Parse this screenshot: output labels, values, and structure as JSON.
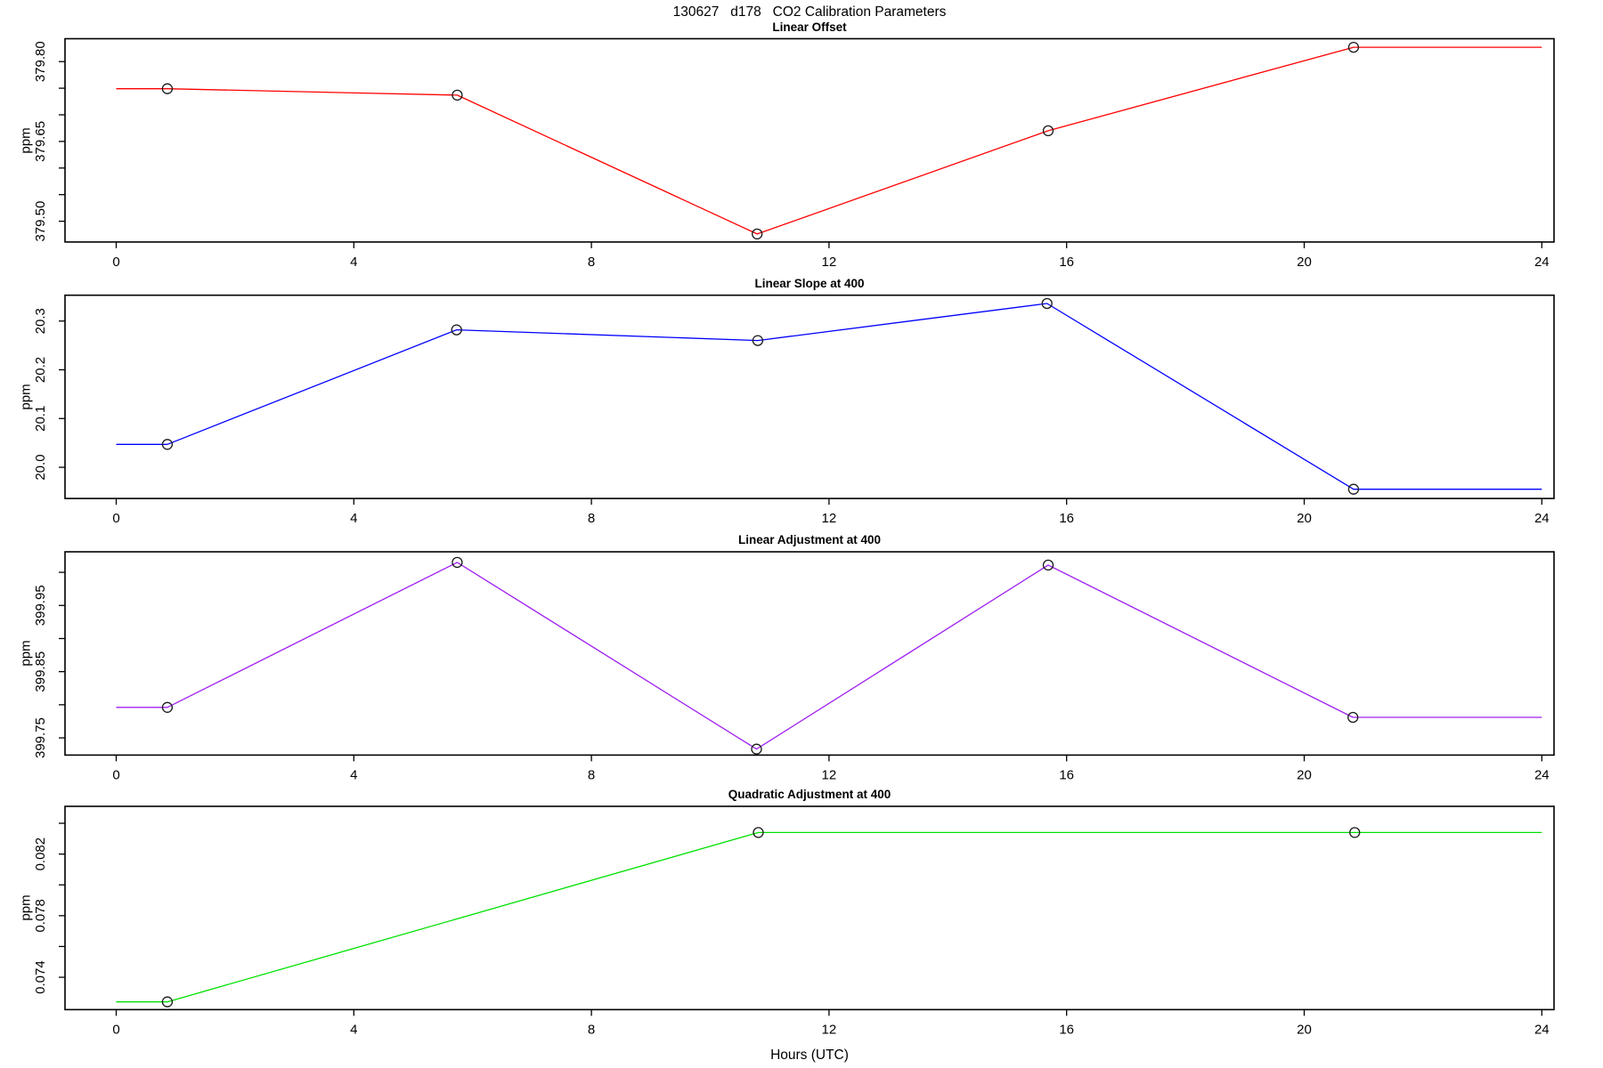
{
  "title": "130627   d178   CO2 Calibration Parameters",
  "xlabel": "Hours (UTC)",
  "x_ticks": [
    {
      "v": 0,
      "label": "0"
    },
    {
      "v": 4,
      "label": "4"
    },
    {
      "v": 8,
      "label": "8"
    },
    {
      "v": 12,
      "label": "12"
    },
    {
      "v": 16,
      "label": "16"
    },
    {
      "v": 20,
      "label": "20"
    },
    {
      "v": 24,
      "label": "24"
    }
  ],
  "x_range": [
    0,
    24
  ],
  "chart_data": [
    {
      "type": "line",
      "title": "Linear Offset",
      "ylabel": "ppm",
      "color": "#ff0000",
      "ylim": [
        379.461,
        379.843
      ],
      "grid": false,
      "yticks": [
        {
          "v": 379.8,
          "label": "379.80"
        },
        {
          "v": 379.75
        },
        {
          "v": 379.7
        },
        {
          "v": 379.65,
          "label": "379.65"
        },
        {
          "v": 379.6
        },
        {
          "v": 379.55
        },
        {
          "v": 379.5,
          "label": "379.50"
        }
      ],
      "points": {
        "x": [
          0.86,
          5.74,
          10.79,
          15.69,
          20.83
        ],
        "y": [
          379.749,
          379.737,
          379.476,
          379.67,
          379.827
        ]
      },
      "line": [
        [
          0,
          379.749
        ],
        [
          0.86,
          379.749
        ],
        [
          5.74,
          379.737
        ],
        [
          10.79,
          379.476
        ],
        [
          15.69,
          379.67
        ],
        [
          20.83,
          379.827
        ],
        [
          24,
          379.827
        ]
      ]
    },
    {
      "type": "line",
      "title": "Linear Slope at 400",
      "ylabel": "ppm",
      "color": "#0000ff",
      "ylim": [
        19.936,
        20.353
      ],
      "grid": false,
      "yticks": [
        {
          "v": 20.3,
          "label": "20.3"
        },
        {
          "v": 20.2,
          "label": "20.2"
        },
        {
          "v": 20.1,
          "label": "20.1"
        },
        {
          "v": 20.0,
          "label": "20.0"
        }
      ],
      "points": {
        "x": [
          0.86,
          5.73,
          10.8,
          15.67,
          20.83
        ],
        "y": [
          20.047,
          20.282,
          20.26,
          20.336,
          19.955
        ]
      },
      "line": [
        [
          0,
          20.047
        ],
        [
          0.86,
          20.047
        ],
        [
          5.73,
          20.282
        ],
        [
          10.8,
          20.26
        ],
        [
          15.67,
          20.336
        ],
        [
          20.83,
          19.955
        ],
        [
          24,
          19.955
        ]
      ]
    },
    {
      "type": "line",
      "title": "Linear Adjustment at 400",
      "ylabel": "ppm",
      "color": "#a020f0",
      "ylim": [
        399.724,
        400.031
      ],
      "grid": false,
      "yticks": [
        {
          "v": 400.0
        },
        {
          "v": 399.95,
          "label": "399.95"
        },
        {
          "v": 399.9
        },
        {
          "v": 399.85,
          "label": "399.85"
        },
        {
          "v": 399.8
        },
        {
          "v": 399.75,
          "label": "399.75"
        }
      ],
      "points": {
        "x": [
          0.86,
          5.74,
          10.78,
          15.69,
          20.82
        ],
        "y": [
          399.796,
          400.015,
          399.733,
          400.011,
          399.781
        ]
      },
      "line": [
        [
          0,
          399.796
        ],
        [
          0.86,
          399.796
        ],
        [
          5.74,
          400.015
        ],
        [
          10.78,
          399.733
        ],
        [
          15.69,
          400.011
        ],
        [
          20.82,
          399.781
        ],
        [
          24,
          399.781
        ]
      ]
    },
    {
      "type": "line",
      "title": "Quadratic Adjustment at 400",
      "ylabel": "ppm",
      "color": "#00e000",
      "ylim": [
        0.0719,
        0.0851
      ],
      "grid": false,
      "yticks": [
        {
          "v": 0.084
        },
        {
          "v": 0.082,
          "label": "0.082"
        },
        {
          "v": 0.08
        },
        {
          "v": 0.078,
          "label": "0.078"
        },
        {
          "v": 0.076
        },
        {
          "v": 0.074,
          "label": "0.074"
        }
      ],
      "points": {
        "x": [
          0.86,
          10.81,
          20.85
        ],
        "y": [
          0.0724,
          0.0834,
          0.0834
        ]
      },
      "line": [
        [
          0,
          0.0724
        ],
        [
          0.86,
          0.0724
        ],
        [
          10.81,
          0.0834
        ],
        [
          20.85,
          0.0834
        ],
        [
          24,
          0.0834
        ]
      ]
    }
  ]
}
